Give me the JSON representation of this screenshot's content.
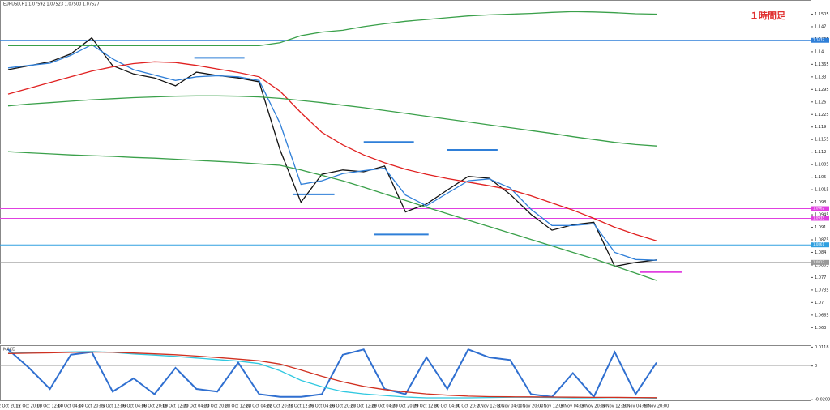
{
  "chart_data": [
    {
      "type": "line",
      "title": "EURUSD,H1 1.07592 1.07523 1.07500 1.07527",
      "annotation": "１時間足",
      "categories": [
        "12 Oct 2015",
        "12 Oct 20:00",
        "13 Oct 12:00",
        "14 Oct 04:00",
        "14 Oct 20:00",
        "15 Oct 12:00",
        "16 Oct 04:00",
        "16 Oct 20:00",
        "19 Oct 12:00",
        "20 Oct 04:00",
        "20 Oct 20:00",
        "21 Oct 12:00",
        "22 Oct 04:00",
        "22 Oct 20:00",
        "23 Oct 12:00",
        "26 Oct 04:00",
        "26 Oct 20:00",
        "27 Oct 12:00",
        "28 Oct 04:00",
        "28 Oct 20:00",
        "29 Oct 12:00",
        "30 Oct 04:00",
        "30 Oct 20:00",
        "2 Nov 12:00",
        "3 Nov 04:00",
        "3 Nov 20:00",
        "4 Nov 12:00",
        "5 Nov 04:00",
        "5 Nov 20:00",
        "6 Nov 12:00",
        "9 Nov 04:00",
        "9 Nov 20:00"
      ],
      "ylim": [
        1.059,
        1.154
      ],
      "yticks": [
        1.1505,
        1.147,
        1.1435,
        1.14,
        1.1365,
        1.133,
        1.1295,
        1.126,
        1.1225,
        1.119,
        1.1155,
        1.112,
        1.1085,
        1.105,
        1.1015,
        1.098,
        1.0945,
        1.091,
        1.0875,
        1.084,
        1.0805,
        1.077,
        1.0735,
        1.07,
        1.0665,
        1.063
      ],
      "series": [
        {
          "color": "#111111",
          "values": [
            1.135,
            1.1361,
            1.1372,
            1.1394,
            1.1439,
            1.1361,
            1.1338,
            1.1327,
            1.1305,
            1.1343,
            1.1334,
            1.1327,
            1.1316,
            1.1126,
            1.098,
            1.1058,
            1.107,
            1.1065,
            1.1081,
            1.0953,
            1.0975,
            1.1014,
            1.1052,
            1.1047,
            1.1002,
            1.0946,
            1.0902,
            1.0917,
            1.0924,
            1.0801,
            1.0812,
            1.0819
          ]
        },
        {
          "color": "#2f7fd8",
          "values": [
            1.1355,
            1.1362,
            1.1368,
            1.139,
            1.142,
            1.138,
            1.135,
            1.1335,
            1.132,
            1.133,
            1.1333,
            1.133,
            1.132,
            1.12,
            1.103,
            1.104,
            1.106,
            1.1068,
            1.1075,
            1.1,
            1.097,
            1.1005,
            1.104,
            1.1045,
            1.102,
            1.096,
            1.0915,
            1.0915,
            1.092,
            1.084,
            1.082,
            1.0818
          ]
        },
        {
          "color": "#e02020",
          "values": [
            1.1282,
            1.1298,
            1.1314,
            1.133,
            1.1346,
            1.1358,
            1.1367,
            1.1372,
            1.137,
            1.1362,
            1.1352,
            1.1342,
            1.133,
            1.129,
            1.123,
            1.1175,
            1.114,
            1.1112,
            1.109,
            1.1072,
            1.1058,
            1.1046,
            1.1036,
            1.1026,
            1.1015,
            1.0998,
            1.0978,
            1.0958,
            1.0935,
            1.091,
            1.089,
            1.0872
          ]
        },
        {
          "color": "#3aa04a",
          "values": [
            1.1417,
            1.1417,
            1.1417,
            1.1417,
            1.1417,
            1.1417,
            1.1417,
            1.1417,
            1.1417,
            1.1417,
            1.1417,
            1.1417,
            1.1417,
            1.1425,
            1.1445,
            1.1455,
            1.146,
            1.147,
            1.1478,
            1.1485,
            1.149,
            1.1495,
            1.15,
            1.1503,
            1.1505,
            1.1507,
            1.151,
            1.1512,
            1.1511,
            1.1509,
            1.1506,
            1.1505
          ]
        },
        {
          "color": "#3aa04a",
          "values": [
            1.1249,
            1.1254,
            1.1258,
            1.1262,
            1.1266,
            1.1269,
            1.1272,
            1.1274,
            1.1276,
            1.1277,
            1.1277,
            1.1276,
            1.1274,
            1.127,
            1.1264,
            1.1258,
            1.1251,
            1.1244,
            1.1236,
            1.1228,
            1.122,
            1.1212,
            1.1204,
            1.1196,
            1.1188,
            1.118,
            1.1172,
            1.1163,
            1.1155,
            1.1147,
            1.1141,
            1.1137
          ]
        },
        {
          "color": "#3aa04a",
          "values": [
            1.1121,
            1.1118,
            1.1115,
            1.1112,
            1.111,
            1.1108,
            1.1105,
            1.1103,
            1.11,
            1.1097,
            1.1094,
            1.1091,
            1.1087,
            1.1083,
            1.107,
            1.1055,
            1.104,
            1.1022,
            1.1003,
            1.0985,
            1.0966,
            1.0948,
            1.093,
            1.0912,
            1.0894,
            1.0876,
            1.0858,
            1.084,
            1.0822,
            1.0802,
            1.0782,
            1.0762
          ]
        }
      ],
      "levels": [
        {
          "value": 1.1432,
          "color": "#2f7fd8"
        },
        {
          "value": 1.0962,
          "color": "#e040e0"
        },
        {
          "value": 1.0935,
          "color": "#e040e0"
        },
        {
          "value": 1.0861,
          "color": "#30a0e0"
        },
        {
          "value": 1.0812,
          "color": "#999999"
        }
      ],
      "segments": [
        {
          "value": 1.1383,
          "from": 8.9,
          "to": 11.3,
          "color": "#2f7fd8"
        },
        {
          "value": 1.1148,
          "from": 17,
          "to": 19.4,
          "color": "#2f7fd8"
        },
        {
          "value": 1.1126,
          "from": 21,
          "to": 23.4,
          "color": "#2f7fd8"
        },
        {
          "value": 1.1002,
          "from": 13.6,
          "to": 15.6,
          "color": "#2f7fd8"
        },
        {
          "value": 1.089,
          "from": 17.5,
          "to": 20.1,
          "color": "#2f7fd8"
        },
        {
          "value": 1.0785,
          "from": 30.2,
          "to": 32.2,
          "color": "#e040e0"
        }
      ]
    },
    {
      "type": "line",
      "title": "MACD",
      "ylim": [
        -0.021,
        0.012
      ],
      "yticks": [
        0.0118,
        0,
        -0.0209
      ],
      "y2lim": [
        0,
        100
      ],
      "series": [
        {
          "color": "#2f6fd0",
          "axis": "y2",
          "values": [
            95,
            60,
            20,
            85,
            90,
            15,
            40,
            10,
            60,
            20,
            15,
            70,
            10,
            5,
            5,
            10,
            85,
            95,
            20,
            10,
            80,
            20,
            95,
            80,
            75,
            10,
            5,
            50,
            5,
            90,
            10,
            70
          ]
        },
        {
          "color": "#30c8e0",
          "values": [
            0.008,
            0.0082,
            0.0085,
            0.0088,
            0.009,
            0.0085,
            0.0075,
            0.0068,
            0.006,
            0.005,
            0.004,
            0.003,
            0.0015,
            -0.003,
            -0.009,
            -0.013,
            -0.016,
            -0.0175,
            -0.0185,
            -0.0195,
            -0.02,
            -0.02,
            -0.02,
            -0.0198,
            -0.0196,
            -0.0196,
            -0.0198,
            -0.02,
            -0.02,
            -0.0198,
            -0.02,
            -0.0202
          ]
        },
        {
          "color": "#d03020",
          "values": [
            0.0078,
            0.008,
            0.0082,
            0.0085,
            0.0087,
            0.0086,
            0.0081,
            0.0076,
            0.007,
            0.0062,
            0.0053,
            0.0043,
            0.0032,
            0.0012,
            -0.0025,
            -0.0065,
            -0.01,
            -0.0128,
            -0.0148,
            -0.0163,
            -0.0175,
            -0.0183,
            -0.0189,
            -0.0192,
            -0.0193,
            -0.0194,
            -0.0195,
            -0.0196,
            -0.0197,
            -0.0197,
            -0.0198,
            -0.0199
          ]
        }
      ]
    }
  ]
}
